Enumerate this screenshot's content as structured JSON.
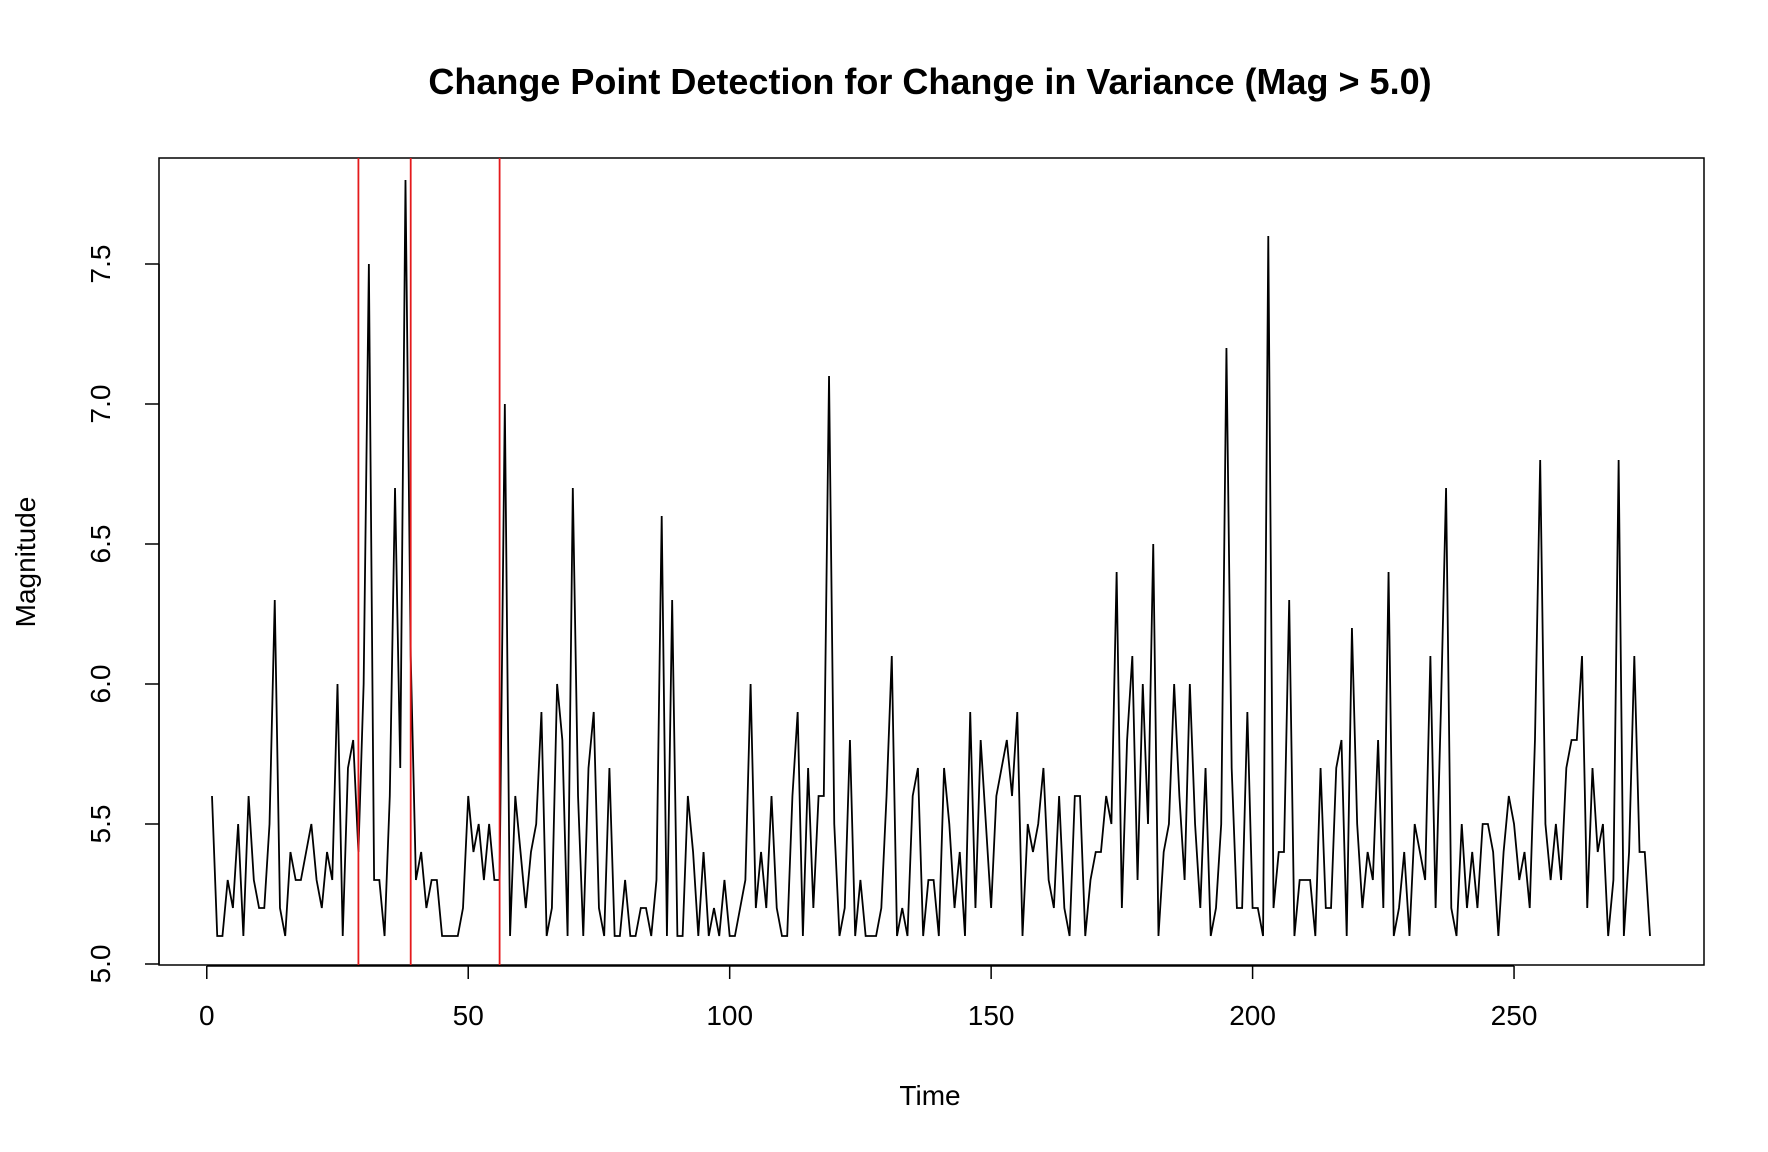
{
  "chart_data": {
    "type": "line",
    "title": "Change Point Detection for Change in Variance (Mag > 5.0)",
    "xlabel": "Time",
    "ylabel": "Magnitude",
    "xlim": [
      1,
      276
    ],
    "ylim": [
      5.0,
      7.8
    ],
    "xticks": [
      0,
      50,
      100,
      150,
      200,
      250
    ],
    "yticks": [
      5.0,
      5.5,
      6.0,
      6.5,
      7.0,
      7.5
    ],
    "ytick_labels": [
      "5.0",
      "5.5",
      "6.0",
      "6.5",
      "7.0",
      "7.5"
    ],
    "grid": false,
    "line_color": "#000000",
    "changepoint_color": "#e41a1c",
    "changepoints": [
      29,
      39,
      56
    ],
    "series": [
      {
        "values": [
          5.6,
          5.1,
          5.1,
          5.3,
          5.2,
          5.5,
          5.1,
          5.6,
          5.3,
          5.2,
          5.2,
          5.5,
          6.3,
          5.2,
          5.1,
          5.4,
          5.3,
          5.3,
          5.4,
          5.5,
          5.3,
          5.2,
          5.4,
          5.3,
          6.0,
          5.1,
          5.7,
          5.8,
          5.4,
          6.0,
          7.5,
          5.3,
          5.3,
          5.1,
          5.6,
          6.7,
          5.7,
          7.8,
          6.1,
          5.3,
          5.4,
          5.2,
          5.3,
          5.3,
          5.1,
          5.1,
          5.1,
          5.1,
          5.2,
          5.6,
          5.4,
          5.5,
          5.3,
          5.5,
          5.3,
          5.3,
          7.0,
          5.1,
          5.6,
          5.4,
          5.2,
          5.4,
          5.5,
          5.9,
          5.1,
          5.2,
          6.0,
          5.8,
          5.1,
          6.7,
          5.6,
          5.1,
          5.7,
          5.9,
          5.2,
          5.1,
          5.7,
          5.1,
          5.1,
          5.3,
          5.1,
          5.1,
          5.2,
          5.2,
          5.1,
          5.3,
          6.6,
          5.1,
          6.3,
          5.1,
          5.1,
          5.6,
          5.4,
          5.1,
          5.4,
          5.1,
          5.2,
          5.1,
          5.3,
          5.1,
          5.1,
          5.2,
          5.3,
          6.0,
          5.2,
          5.4,
          5.2,
          5.6,
          5.2,
          5.1,
          5.1,
          5.6,
          5.9,
          5.1,
          5.7,
          5.2,
          5.6,
          5.6,
          7.1,
          5.5,
          5.1,
          5.2,
          5.8,
          5.1,
          5.3,
          5.1,
          5.1,
          5.1,
          5.2,
          5.6,
          6.1,
          5.1,
          5.2,
          5.1,
          5.6,
          5.7,
          5.1,
          5.3,
          5.3,
          5.1,
          5.7,
          5.5,
          5.2,
          5.4,
          5.1,
          5.9,
          5.2,
          5.8,
          5.5,
          5.2,
          5.6,
          5.7,
          5.8,
          5.6,
          5.9,
          5.1,
          5.5,
          5.4,
          5.5,
          5.7,
          5.3,
          5.2,
          5.6,
          5.2,
          5.1,
          5.6,
          5.6,
          5.1,
          5.3,
          5.4,
          5.4,
          5.6,
          5.5,
          6.4,
          5.2,
          5.8,
          6.1,
          5.3,
          6.0,
          5.5,
          6.5,
          5.1,
          5.4,
          5.5,
          6.0,
          5.6,
          5.3,
          6.0,
          5.5,
          5.2,
          5.7,
          5.1,
          5.2,
          5.5,
          7.2,
          5.7,
          5.2,
          5.2,
          5.9,
          5.2,
          5.2,
          5.1,
          7.6,
          5.2,
          5.4,
          5.4,
          6.3,
          5.1,
          5.3,
          5.3,
          5.3,
          5.1,
          5.7,
          5.2,
          5.2,
          5.7,
          5.8,
          5.1,
          6.2,
          5.5,
          5.2,
          5.4,
          5.3,
          5.8,
          5.2,
          6.4,
          5.1,
          5.2,
          5.4,
          5.1,
          5.5,
          5.4,
          5.3,
          6.1,
          5.2,
          5.9,
          6.7,
          5.2,
          5.1,
          5.5,
          5.2,
          5.4,
          5.2,
          5.5,
          5.5,
          5.4,
          5.1,
          5.4,
          5.6,
          5.5,
          5.3,
          5.4,
          5.2,
          5.8,
          6.8,
          5.5,
          5.3,
          5.5,
          5.3,
          5.7,
          5.8,
          5.8,
          6.1,
          5.2,
          5.7,
          5.4,
          5.5,
          5.1,
          5.3,
          6.8,
          5.1,
          5.4,
          6.1,
          5.4,
          5.4,
          5.1
        ]
      }
    ]
  }
}
